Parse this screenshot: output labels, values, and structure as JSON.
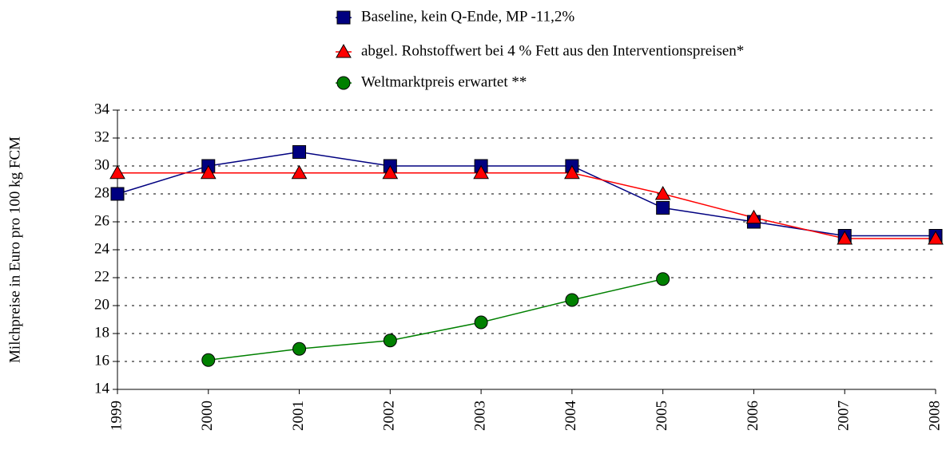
{
  "chart_data": {
    "type": "line",
    "y_label": "Milchpreise in Euro pro 100 kg FCM",
    "categories": [
      "1999",
      "2000",
      "2001",
      "2002",
      "2003",
      "2004",
      "2005",
      "2006",
      "2007",
      "2008"
    ],
    "series": [
      {
        "name": "Baseline, kein Q-Ende, MP -11,2%",
        "color": "#000080",
        "marker": "square",
        "values": [
          28,
          30,
          31,
          30,
          30,
          30,
          27,
          26,
          25,
          25
        ]
      },
      {
        "name": "abgel. Rohstoffwert bei 4 % Fett aus den Interventionspreisen*",
        "color": "#ff0000",
        "marker": "triangle",
        "values": [
          29.5,
          29.5,
          29.5,
          29.5,
          29.5,
          29.5,
          28,
          26.3,
          24.8,
          24.8
        ]
      },
      {
        "name": "Weltmarktpreis erwartet **",
        "color": "#008000",
        "marker": "circle",
        "values": [
          null,
          16.1,
          16.9,
          17.5,
          18.8,
          20.4,
          21.9,
          null,
          null,
          null
        ]
      }
    ],
    "ylim": [
      14,
      34
    ],
    "yticks": [
      14,
      16,
      18,
      20,
      22,
      24,
      26,
      28,
      30,
      32,
      34
    ],
    "grid": true,
    "legend": "top"
  }
}
